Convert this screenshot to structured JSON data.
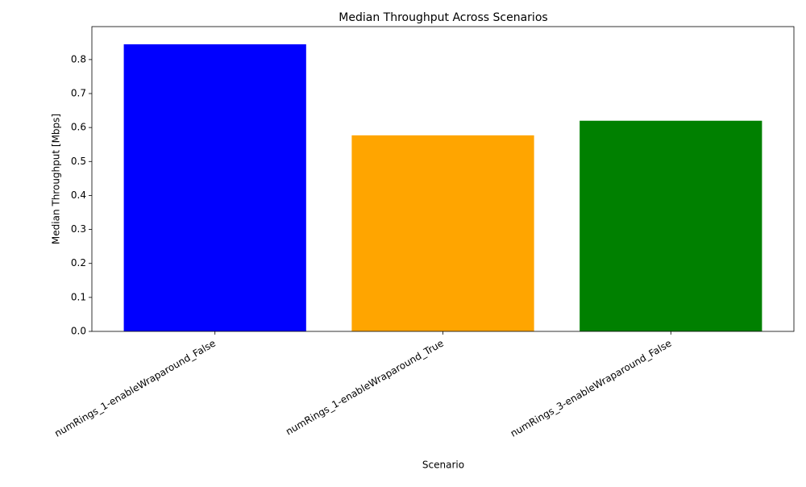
{
  "chart_data": {
    "type": "bar",
    "title": "Median Throughput Across Scenarios",
    "x_label": "Scenario",
    "y_label": "Median Throughput [Mbps]",
    "categories": [
      "numRings_1-enableWraparound_False",
      "numRings_1-enableWraparound_True",
      "numRings_3-enableWraparound_False"
    ],
    "values": [
      0.845,
      0.577,
      0.62
    ],
    "colors": [
      "blue",
      "orange",
      "green"
    ],
    "ylim": [
      0,
      0.897
    ],
    "yticks": [
      {
        "value": 0,
        "label": "0.0"
      },
      {
        "value": 0.1,
        "label": "0.1"
      },
      {
        "value": 0.2,
        "label": "0.2"
      },
      {
        "value": 0.3,
        "label": "0.3"
      },
      {
        "value": 0.4,
        "label": "0.4"
      },
      {
        "value": 0.5,
        "label": "0.5"
      },
      {
        "value": 0.6,
        "label": "0.6"
      },
      {
        "value": 0.7,
        "label": "0.7"
      },
      {
        "value": 0.8,
        "label": "0.8"
      }
    ],
    "grid": false
  }
}
